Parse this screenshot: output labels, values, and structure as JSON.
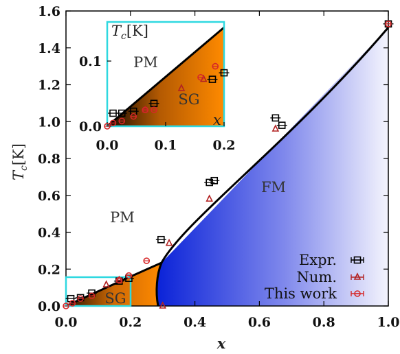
{
  "chart_data": [
    {
      "type": "scatter",
      "xlabel": "x",
      "ylabel": "T_c[K]",
      "xlim": [
        0,
        1.0
      ],
      "ylim": [
        0,
        1.6
      ],
      "x_ticks": [
        "0.0",
        "0.2",
        "0.4",
        "0.6",
        "0.8",
        "1.0"
      ],
      "y_ticks": [
        "0.0",
        "0.2",
        "0.4",
        "0.6",
        "0.8",
        "1.0",
        "1.2",
        "1.4",
        "1.6"
      ],
      "regions": [
        "PM",
        "SG",
        "FM"
      ],
      "legend_position": "bottom-right",
      "series": [
        {
          "name": "Expr.",
          "color": "#000000",
          "marker": "square",
          "x": [
            0.015,
            0.045,
            0.08,
            0.165,
            0.195,
            0.295,
            0.445,
            0.46,
            0.65,
            0.67,
            1.0
          ],
          "y": [
            0.04,
            0.045,
            0.07,
            0.135,
            0.15,
            0.36,
            0.67,
            0.68,
            1.02,
            0.98,
            1.53
          ]
        },
        {
          "name": "Num.",
          "color": "#b22222",
          "marker": "triangle",
          "x": [
            0.125,
            0.165,
            0.3,
            0.32,
            0.445,
            0.65
          ],
          "y": [
            0.115,
            0.14,
            0.0,
            0.34,
            0.58,
            0.96
          ]
        },
        {
          "name": "This work",
          "color": "#d62728",
          "marker": "circle",
          "x": [
            0.0,
            0.02,
            0.045,
            0.08,
            0.165,
            0.195,
            0.25,
            1.0
          ],
          "y": [
            0.0,
            0.015,
            0.04,
            0.055,
            0.14,
            0.165,
            0.245,
            1.53
          ]
        }
      ],
      "boundary": {
        "name": "",
        "x": [
          0.0,
          0.2,
          0.3,
          1.0
        ],
        "y": [
          0.0,
          0.155,
          0.23,
          1.53
        ]
      }
    },
    {
      "type": "scatter",
      "inset": true,
      "xlabel": "x",
      "ylabel": "T_c[K]",
      "xlim": [
        0,
        0.2
      ],
      "ylim": [
        0,
        0.16
      ],
      "x_ticks": [
        "0.0",
        "0.1",
        "0.2"
      ],
      "y_ticks": [
        "0.0",
        "0.1"
      ],
      "regions": [
        "PM",
        "SG"
      ],
      "series": [
        {
          "name": "Expr.",
          "marker": "square",
          "x": [
            0.01,
            0.025,
            0.045,
            0.08,
            0.18,
            0.2
          ],
          "y": [
            0.02,
            0.02,
            0.023,
            0.035,
            0.072,
            0.082
          ]
        },
        {
          "name": "Num.",
          "marker": "triangle",
          "x": [
            0.065,
            0.127,
            0.165
          ],
          "y": [
            0.025,
            0.058,
            0.072
          ]
        },
        {
          "name": "This work",
          "marker": "circle",
          "x": [
            0.0,
            0.01,
            0.025,
            0.045,
            0.065,
            0.08,
            0.16,
            0.185
          ],
          "y": [
            0.0,
            0.005,
            0.008,
            0.015,
            0.025,
            0.025,
            0.075,
            0.092
          ]
        }
      ]
    }
  ]
}
